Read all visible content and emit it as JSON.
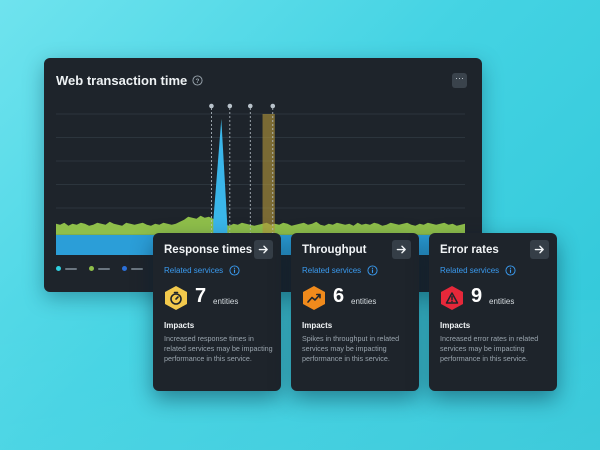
{
  "panel": {
    "title": "Web transaction time",
    "menu_label": "···",
    "colors": {
      "background": "#1e242b",
      "area_green": "#8fbf4a",
      "area_blue": "#2b9ed8",
      "highlight": "#b79a3a"
    }
  },
  "chart_data": {
    "type": "area",
    "title": "Web transaction time",
    "grid": true,
    "gridlines": 6,
    "series": [
      {
        "color": "#2b9ed8",
        "values": [
          2,
          2,
          2,
          2,
          2,
          2,
          2,
          2,
          2,
          2,
          2,
          2,
          2,
          2,
          2,
          2,
          2,
          2,
          2,
          2,
          2,
          2,
          2,
          2,
          2,
          2,
          2,
          2,
          2,
          2,
          2,
          2,
          2,
          2,
          2,
          2,
          2,
          2,
          2,
          2,
          2,
          2,
          2,
          2,
          2,
          2,
          2,
          2,
          2,
          2,
          2,
          2,
          2,
          2,
          2,
          2,
          2,
          2,
          2,
          2,
          2,
          2,
          2,
          2,
          2,
          2,
          2,
          2,
          2,
          2,
          2,
          2,
          2,
          2,
          2,
          2,
          2,
          2,
          2,
          2,
          2,
          2,
          2,
          2,
          2,
          2,
          2,
          2,
          2,
          2,
          2,
          2,
          2,
          2,
          2,
          2,
          2,
          2,
          2,
          2
        ]
      },
      {
        "color": "#8fbf4a",
        "values": [
          1.1,
          1.0,
          1.2,
          0.9,
          1.1,
          1.0,
          1.2,
          1.1,
          0.9,
          1.0,
          1.2,
          1.1,
          1.0,
          1.3,
          1.1,
          1.0,
          0.9,
          1.2,
          1.1,
          1.0,
          1.1,
          1.2,
          1.0,
          0.9,
          1.1,
          1.0,
          1.2,
          1.1,
          1.0,
          1.1,
          1.3,
          1.5,
          1.8,
          1.7,
          1.6,
          1.9,
          1.7,
          1.8,
          1.6,
          1.4,
          11.5,
          1.0,
          0.9,
          1.1,
          1.0,
          1.2,
          1.1,
          1.0,
          0.9,
          1.0,
          1.1,
          1.2,
          1.0,
          1.1,
          1.0,
          1.2,
          1.1,
          0.9,
          1.0,
          1.1,
          1.2,
          1.0,
          1.1,
          1.3,
          1.0,
          0.9,
          1.1,
          1.0,
          1.2,
          1.1,
          1.0,
          1.1,
          0.9,
          1.2,
          1.0,
          1.1,
          1.0,
          1.2,
          1.1,
          0.9,
          1.0,
          1.2,
          1.1,
          1.0,
          1.1,
          1.2,
          1.0,
          0.9,
          1.1,
          1.0,
          1.2,
          1.1,
          1.0,
          1.1,
          1.2,
          1.0,
          1.1,
          0.9,
          1.0,
          1.1
        ]
      }
    ],
    "ylim": [
      0,
      14
    ],
    "markers": [
      0.38,
      0.425,
      0.475,
      0.53
    ],
    "highlight_range": [
      0.505,
      0.535
    ],
    "legend": [
      {
        "color": "#2fd0e0"
      },
      {
        "color": "#8fbf4a"
      },
      {
        "color": "#2b6fd8"
      }
    ]
  },
  "cards": [
    {
      "title": "Response times",
      "related": "Related services",
      "count": "7",
      "entities": "entities",
      "impacts": "Impacts",
      "description": "Increased response times in related services may be impacting performance in this service.",
      "badge_color": "#f2c94c",
      "badge_icon": "stopwatch-icon"
    },
    {
      "title": "Throughput",
      "related": "Related services",
      "count": "6",
      "entities": "entities",
      "impacts": "Impacts",
      "description": "Spikes in throughput in related services may be impacting performance in this service.",
      "badge_color": "#f08a1c",
      "badge_icon": "trend-up-icon"
    },
    {
      "title": "Error rates",
      "related": "Related services",
      "count": "9",
      "entities": "entities",
      "impacts": "Impacts",
      "description": "Increased error rates in related services may be impacting performance in this service.",
      "badge_color": "#e6283a",
      "badge_icon": "warning-icon"
    }
  ]
}
